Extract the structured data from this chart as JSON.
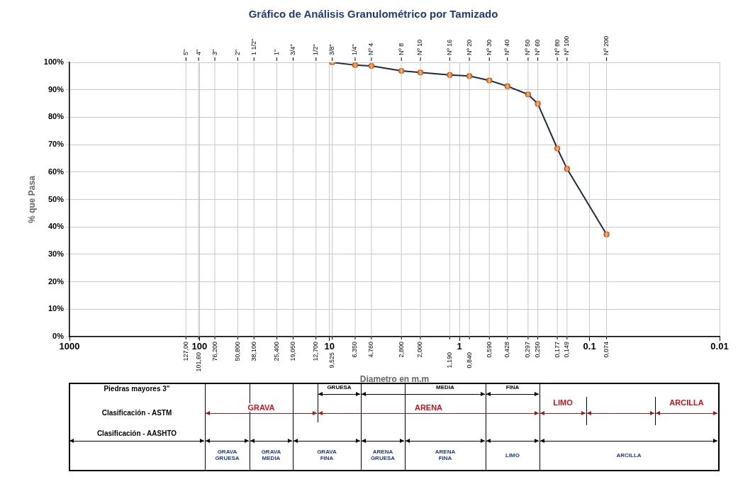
{
  "chart_data": {
    "type": "line",
    "title": "Gráfico de Análisis Granulométrico por Tamizado",
    "xlabel": "Diametro en m.m",
    "ylabel": "% que Pasa",
    "log": "x",
    "marker": "circle",
    "grid": true,
    "legend": false,
    "x": [
      9.525,
      6.35,
      4.76,
      2.8,
      2.0,
      1.19,
      0.84,
      0.59,
      0.428,
      0.297,
      0.25,
      0.177,
      0.149,
      0.074
    ],
    "series": [
      {
        "color": "#1f2a44",
        "values": [
          100,
          99.0,
          98.7,
          96.9,
          96.3,
          95.4,
          95.0,
          93.4,
          91.3,
          88.3,
          84.9,
          68.6,
          61.2,
          37.3
        ]
      }
    ],
    "xlim": [
      1000,
      0.01
    ],
    "xticks": [
      1000,
      100,
      10,
      1,
      0.1,
      0.01
    ],
    "ylim": [
      0,
      100
    ],
    "yticks": [
      {
        "value": 0,
        "label": "0%"
      },
      {
        "value": 10,
        "label": "10%"
      },
      {
        "value": 20,
        "label": "20%"
      },
      {
        "value": 30,
        "label": "30%"
      },
      {
        "value": 40,
        "label": "40%"
      },
      {
        "value": 50,
        "label": "50%"
      },
      {
        "value": 60,
        "label": "60%"
      },
      {
        "value": 70,
        "label": "70%"
      },
      {
        "value": 80,
        "label": "80%"
      },
      {
        "value": 90,
        "label": "90%"
      },
      {
        "value": 100,
        "label": "100%"
      }
    ],
    "ref_lines": [
      {
        "axis": "x",
        "value": 127,
        "label": "127,00"
      },
      {
        "axis": "x",
        "value": 101.6,
        "label": "101,60"
      },
      {
        "axis": "x",
        "value": 76.2,
        "label": "76,200"
      },
      {
        "axis": "x",
        "value": 50.8,
        "label": "50,800"
      },
      {
        "axis": "x",
        "value": 38.1,
        "label": "38,100"
      },
      {
        "axis": "x",
        "value": 25.4,
        "label": "25,400"
      },
      {
        "axis": "x",
        "value": 19.05,
        "label": "19,050"
      },
      {
        "axis": "x",
        "value": 12.7,
        "label": "12,700"
      },
      {
        "axis": "x",
        "value": 9.525,
        "label": "9,525"
      },
      {
        "axis": "x",
        "value": 6.35,
        "label": "6,350"
      },
      {
        "axis": "x",
        "value": 4.76,
        "label": "4,760"
      },
      {
        "axis": "x",
        "value": 2.8,
        "label": "2,800"
      },
      {
        "axis": "x",
        "value": 2.0,
        "label": "2,000"
      },
      {
        "axis": "x",
        "value": 1.19,
        "label": "1,190"
      },
      {
        "axis": "x",
        "value": 0.84,
        "label": "0,840"
      },
      {
        "axis": "x",
        "value": 0.59,
        "label": "0,590"
      },
      {
        "axis": "x",
        "value": 0.428,
        "label": "0,428"
      },
      {
        "axis": "x",
        "value": 0.297,
        "label": "0,297"
      },
      {
        "axis": "x",
        "value": 0.25,
        "label": "0,250"
      },
      {
        "axis": "x",
        "value": 0.177,
        "label": "0,177"
      },
      {
        "axis": "x",
        "value": 0.149,
        "label": "0,149"
      },
      {
        "axis": "x",
        "value": 0.074,
        "label": "0,074"
      }
    ],
    "annotations": [
      "Piedras mayores 3\"",
      "Clasificación - ASTM",
      "Clasificación - AASHTO",
      "GRUESA",
      "MEDIA",
      "FINA",
      "GRAVA",
      "ARENA",
      "LIMO",
      "ARCILLA",
      "GRAVA\nGRUESA",
      "GRAVA\nMEDIA",
      "GRAVA\nFINA",
      "ARENA\nGRUESA",
      "ARENA\nFINA",
      "LIMO",
      "ARCILLA",
      "5\"",
      "4\"",
      "3\"",
      "2\"",
      "1 1/2\"",
      "1\"",
      "3/4\"",
      "1/2\"",
      "3/8\"",
      "1/4\"",
      "Nº 4",
      "Nº 8",
      "Nº 10",
      "Nº 16",
      "Nº 20",
      "Nº 30",
      "Nº 40",
      "Nº 50",
      "Nº 60",
      "Nº 80",
      "Nº 100",
      "Nº 200"
    ]
  }
}
